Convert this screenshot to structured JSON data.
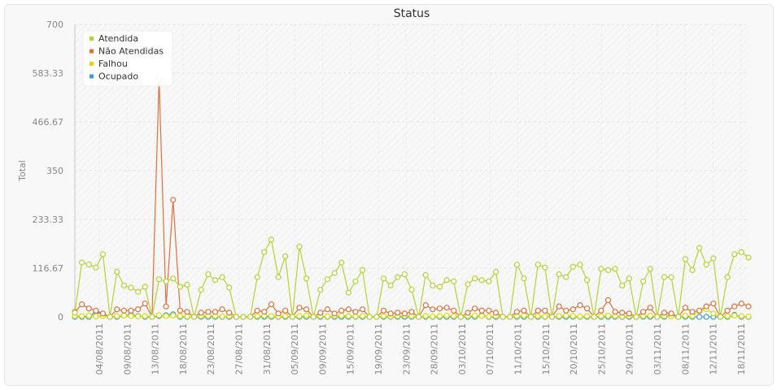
{
  "chart_data": {
    "type": "line",
    "title": "Status",
    "xlabel": "",
    "ylabel": "Total",
    "ylim": [
      0,
      700
    ],
    "yticks": [
      "0",
      "116.67",
      "233.33",
      "350",
      "466.67",
      "583.33",
      "700"
    ],
    "grid": true,
    "legend_position": "top-left",
    "xtick_labels": [
      "04/08/2011",
      "09/08/2011",
      "13/08/2011",
      "18/08/2011",
      "23/08/2011",
      "27/08/2011",
      "31/08/2011",
      "05/09/2011",
      "09/09/2011",
      "15/09/2011",
      "19/09/2011",
      "23/09/2011",
      "28/09/2011",
      "03/10/2011",
      "07/10/2011",
      "11/10/2011",
      "15/10/2011",
      "20/10/2011",
      "25/10/2011",
      "29/10/2011",
      "03/11/2011",
      "08/11/2011",
      "12/11/2011",
      "18/11/2011"
    ],
    "point_count": 97,
    "series": [
      {
        "name": "Atendida",
        "color": "#b5d334",
        "values": [
          10,
          130,
          125,
          118,
          150,
          0,
          108,
          75,
          70,
          60,
          72,
          0,
          90,
          85,
          92,
          72,
          77,
          0,
          65,
          102,
          88,
          95,
          70,
          0,
          0,
          0,
          95,
          155,
          185,
          95,
          145,
          0,
          168,
          92,
          0,
          65,
          90,
          105,
          130,
          58,
          85,
          112,
          0,
          0,
          92,
          75,
          95,
          102,
          65,
          0,
          100,
          75,
          72,
          88,
          85,
          0,
          78,
          92,
          88,
          85,
          108,
          0,
          0,
          125,
          92,
          0,
          125,
          118,
          0,
          102,
          95,
          120,
          125,
          88,
          0,
          115,
          112,
          115,
          75,
          92,
          0,
          85,
          115,
          0,
          95,
          95,
          0,
          138,
          112,
          165,
          125,
          140,
          0,
          95,
          150,
          155,
          142
        ]
      },
      {
        "name": "Não Atendidas",
        "color": "#e2703a",
        "values": [
          12,
          30,
          20,
          15,
          8,
          0,
          18,
          15,
          15,
          18,
          32,
          0,
          570,
          25,
          280,
          15,
          12,
          0,
          10,
          12,
          12,
          18,
          10,
          0,
          0,
          0,
          15,
          12,
          30,
          8,
          15,
          0,
          22,
          18,
          0,
          10,
          18,
          8,
          15,
          18,
          12,
          18,
          0,
          0,
          15,
          8,
          10,
          8,
          12,
          0,
          28,
          18,
          20,
          22,
          15,
          0,
          10,
          20,
          15,
          15,
          10,
          0,
          0,
          12,
          15,
          0,
          15,
          15,
          0,
          25,
          15,
          18,
          28,
          20,
          0,
          15,
          40,
          12,
          10,
          8,
          0,
          12,
          22,
          0,
          10,
          8,
          0,
          22,
          12,
          15,
          25,
          32,
          0,
          15,
          25,
          32,
          25
        ]
      },
      {
        "name": "Falhou",
        "color": "#d6e000",
        "values": [
          2,
          2,
          3,
          1,
          2,
          0,
          2,
          3,
          2,
          1,
          2,
          0,
          4,
          2,
          3,
          2,
          1,
          0,
          2,
          3,
          2,
          1,
          2,
          0,
          0,
          0,
          2,
          3,
          2,
          1,
          2,
          0,
          2,
          3,
          0,
          2,
          1,
          2,
          3,
          2,
          1,
          2,
          0,
          0,
          2,
          1,
          2,
          3,
          2,
          0,
          2,
          1,
          2,
          3,
          2,
          0,
          2,
          3,
          2,
          1,
          2,
          0,
          0,
          2,
          3,
          0,
          2,
          1,
          0,
          2,
          3,
          2,
          1,
          2,
          0,
          2,
          3,
          2,
          1,
          2,
          0,
          2,
          3,
          0,
          2,
          1,
          0,
          3,
          2,
          14,
          18,
          8,
          0,
          2,
          3,
          2,
          1
        ]
      },
      {
        "name": "Ocupado",
        "color": "#3a9fd4",
        "values": [
          0,
          0,
          0,
          12,
          5,
          0,
          0,
          3,
          5,
          2,
          0,
          0,
          2,
          4,
          6,
          0,
          0,
          0,
          0,
          0,
          0,
          0,
          0,
          0,
          0,
          0,
          0,
          0,
          0,
          0,
          0,
          0,
          0,
          0,
          0,
          0,
          0,
          0,
          0,
          0,
          0,
          0,
          0,
          0,
          0,
          0,
          0,
          0,
          0,
          0,
          0,
          0,
          0,
          0,
          0,
          0,
          0,
          0,
          4,
          0,
          0,
          0,
          0,
          0,
          0,
          0,
          0,
          0,
          0,
          0,
          0,
          0,
          0,
          0,
          0,
          0,
          0,
          0,
          0,
          0,
          0,
          0,
          0,
          0,
          0,
          5,
          0,
          0,
          0,
          0,
          0,
          0,
          0,
          0,
          5,
          0,
          0
        ]
      }
    ]
  }
}
